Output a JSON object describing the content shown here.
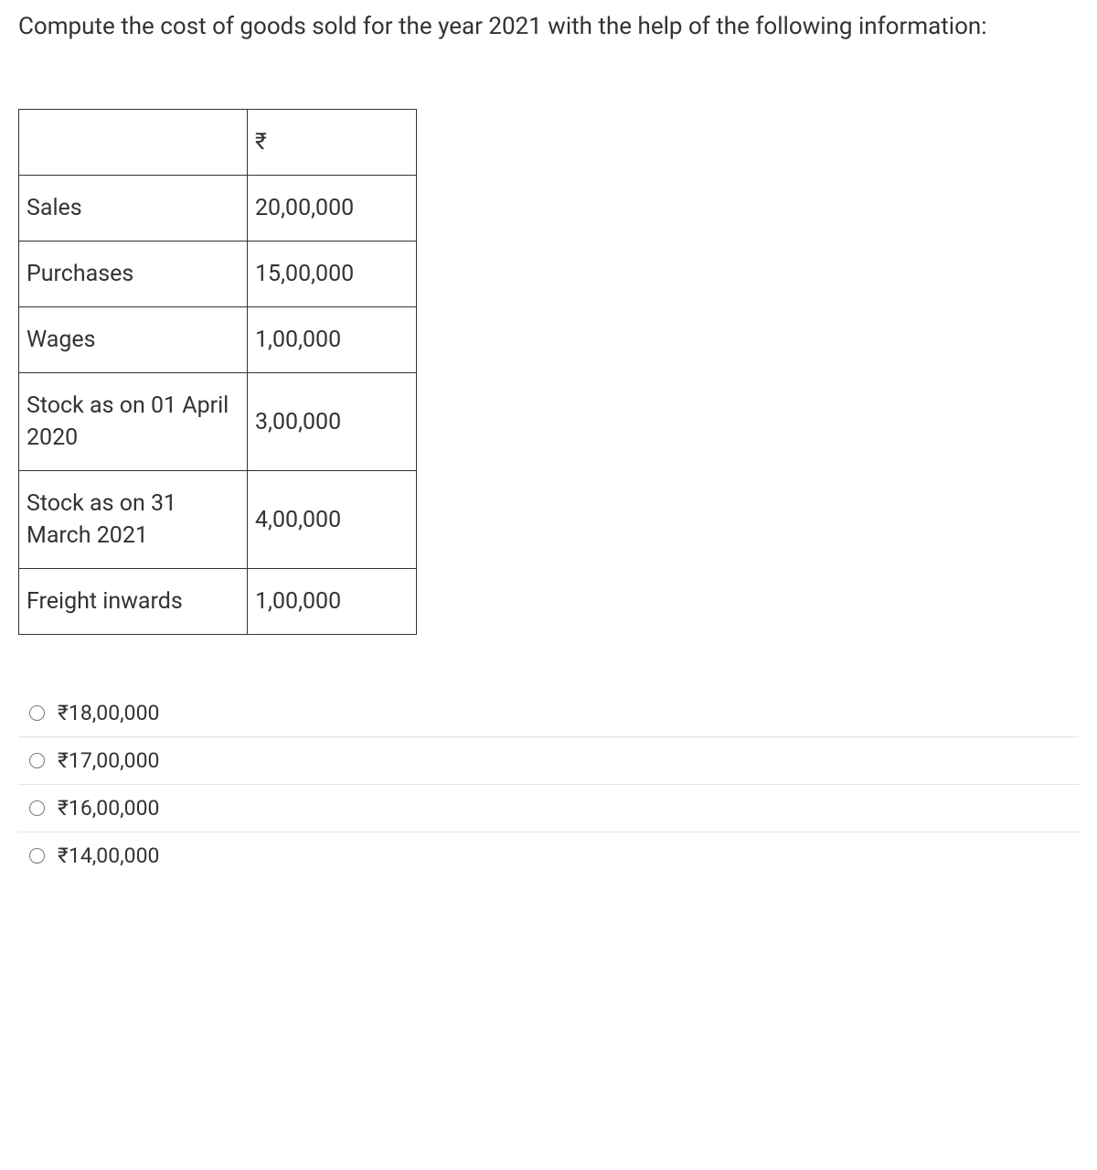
{
  "question": {
    "text": "Compute the cost of goods sold for the year 2021 with the help of the following information:"
  },
  "table": {
    "header_symbol": "₹",
    "rows": [
      {
        "label": "Sales",
        "value": "20,00,000"
      },
      {
        "label": "Purchases",
        "value": "15,00,000"
      },
      {
        "label": "Wages",
        "value": "1,00,000"
      },
      {
        "label": "Stock as on 01 April 2020",
        "value": "3,00,000"
      },
      {
        "label": "Stock as on 31 March 2021",
        "value": "4,00,000"
      },
      {
        "label": "Freight inwards",
        "value": "1,00,000"
      }
    ]
  },
  "options": [
    {
      "label": "₹18,00,000"
    },
    {
      "label": "₹17,00,000"
    },
    {
      "label": "₹16,00,000"
    },
    {
      "label": "₹14,00,000"
    }
  ],
  "styling": {
    "text_color": "#333333",
    "background_color": "#ffffff",
    "border_color": "#333333",
    "option_divider_color": "#e2e2e2",
    "radio_border_color": "#777777",
    "question_fontsize": 26,
    "table_fontsize": 25,
    "option_fontsize": 23
  }
}
